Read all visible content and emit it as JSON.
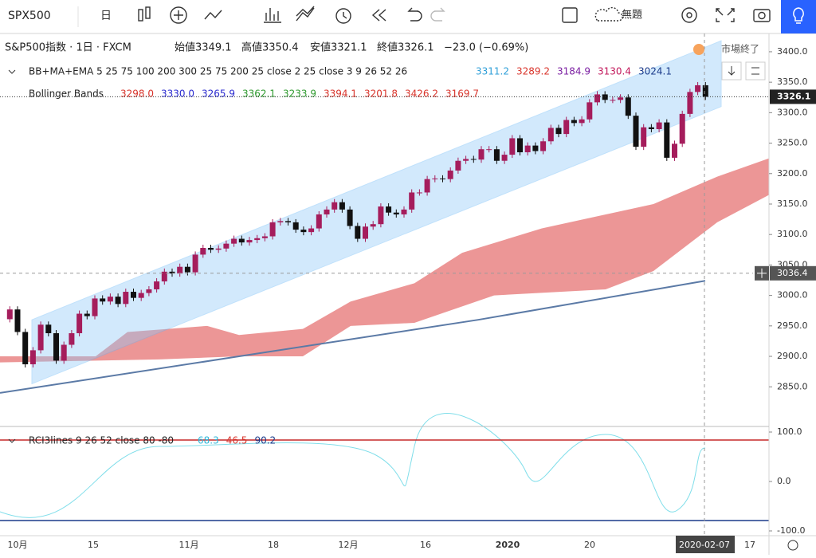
{
  "toolbar": {
    "symbol": "SPX500",
    "interval": "日",
    "layout_name": "無題"
  },
  "header": {
    "title": "S&P500指数 · 1日 · FXCM",
    "open": "始値3349.1",
    "high": "高値3350.4",
    "low": "安値3321.1",
    "close": "終値3326.1",
    "change": "−23.0 (−0.69%)",
    "status": "市場終了"
  },
  "indicators": [
    {
      "name": "BB+MA+EMA 5 25 75 100 200 300 25 75 200 25 close 2 25 close 3 9 26 52 26",
      "values": [
        {
          "text": "3311.2",
          "color": "#2f9fd8"
        },
        {
          "text": "3289.2",
          "color": "#d9342b"
        },
        {
          "text": "3184.9",
          "color": "#7b1fa2"
        },
        {
          "text": "3130.4",
          "color": "#c2185b"
        },
        {
          "text": "3024.1",
          "color": "#1a3a8a"
        }
      ]
    },
    {
      "name": "Bollinger Bands",
      "values": [
        {
          "text": "3298.0",
          "color": "#d9342b"
        },
        {
          "text": "3330.0",
          "color": "#2a2ad0"
        },
        {
          "text": "3265.9",
          "color": "#2a2ad0"
        },
        {
          "text": "3362.1",
          "color": "#2e9a2e"
        },
        {
          "text": "3233.9",
          "color": "#2e9a2e"
        },
        {
          "text": "3394.1",
          "color": "#d9342b"
        },
        {
          "text": "3201.8",
          "color": "#d9342b"
        },
        {
          "text": "3426.2",
          "color": "#d9342b"
        },
        {
          "text": "3169.7",
          "color": "#d9342b"
        }
      ]
    },
    {
      "name": "RCI3lines 9 26 52 close 80 -80",
      "values": [
        {
          "text": "68.3",
          "color": "#2fb6d8"
        },
        {
          "text": "46.5",
          "color": "#d9342b"
        },
        {
          "text": "90.2",
          "color": "#1a3a8a"
        }
      ]
    }
  ],
  "chart": {
    "ylim": [
      2815,
      3430
    ],
    "yticks": [
      {
        "value": 3400,
        "label": "3400.0"
      },
      {
        "value": 3350,
        "label": "3350.0"
      },
      {
        "value": 3300,
        "label": "3300.0"
      },
      {
        "value": 3250,
        "label": "3250.0"
      },
      {
        "value": 3200,
        "label": "3200.0"
      },
      {
        "value": 3150,
        "label": "3150.0"
      },
      {
        "value": 3100,
        "label": "3100.0"
      },
      {
        "value": 3050,
        "label": "3050.0"
      },
      {
        "value": 3000,
        "label": "3000.0"
      },
      {
        "value": 2950,
        "label": "2950.0"
      },
      {
        "value": 2900,
        "label": "2900.0"
      },
      {
        "value": 2850,
        "label": "2850.0"
      }
    ],
    "last_price": {
      "value": 3326.1,
      "label": "3326.1"
    },
    "crosshair_price": {
      "value": 3036.4,
      "label": "3036.4"
    },
    "closes": [
      2961,
      2977,
      2940,
      2887,
      2910,
      2952,
      2938,
      2893,
      2919,
      2938,
      2970,
      2966,
      2995,
      2990,
      2998,
      2986,
      3006,
      2996,
      3004,
      3010,
      3023,
      3039,
      3036,
      3047,
      3038,
      3067,
      3078,
      3075,
      3077,
      3085,
      3093,
      3087,
      3091,
      3094,
      3097,
      3120,
      3122,
      3120,
      3108,
      3104,
      3110,
      3133,
      3141,
      3153,
      3141,
      3114,
      3093,
      3113,
      3117,
      3146,
      3136,
      3133,
      3141,
      3169,
      3169,
      3191,
      3192,
      3191,
      3205,
      3221,
      3224,
      3223,
      3240,
      3240,
      3221,
      3231,
      3258,
      3235,
      3246,
      3237,
      3253,
      3275,
      3265,
      3288,
      3283,
      3289,
      3317,
      3330,
      3321,
      3321,
      3325,
      3295,
      3244,
      3276,
      3273,
      3284,
      3226,
      3249,
      3298,
      3334,
      3345,
      3326.1
    ],
    "x_labels": [
      "10月",
      "15",
      "11月",
      "18",
      "12月",
      "16",
      "2020",
      "20",
      "2020-02-07",
      "17"
    ],
    "up_color": "#a51d5c",
    "down_color": "#111111",
    "rci_ylim": [
      -100,
      100
    ],
    "rci_yticks": [
      {
        "value": 100,
        "label": "100.0"
      },
      {
        "value": 0,
        "label": "0.0"
      },
      {
        "value": -100,
        "label": "-100.0"
      }
    ]
  }
}
